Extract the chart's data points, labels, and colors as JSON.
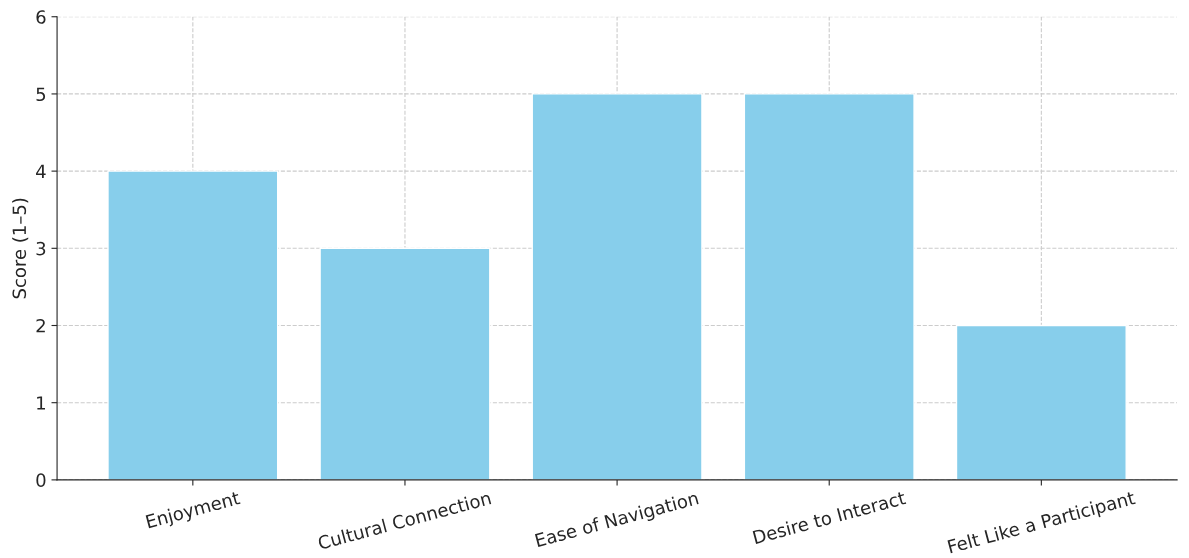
{
  "chart_data": {
    "type": "bar",
    "ylabel": "Score (1–5)",
    "categories": [
      "Enjoyment",
      "Cultural Connection",
      "Ease of Navigation",
      "Desire to Interact",
      "Felt Like a Participant"
    ],
    "values": [
      4,
      3,
      5,
      5,
      2
    ],
    "color": "#87ceeb",
    "ylim": [
      0,
      6
    ],
    "yticks": [
      0,
      1,
      2,
      3,
      4,
      5,
      6
    ],
    "grid": true
  }
}
